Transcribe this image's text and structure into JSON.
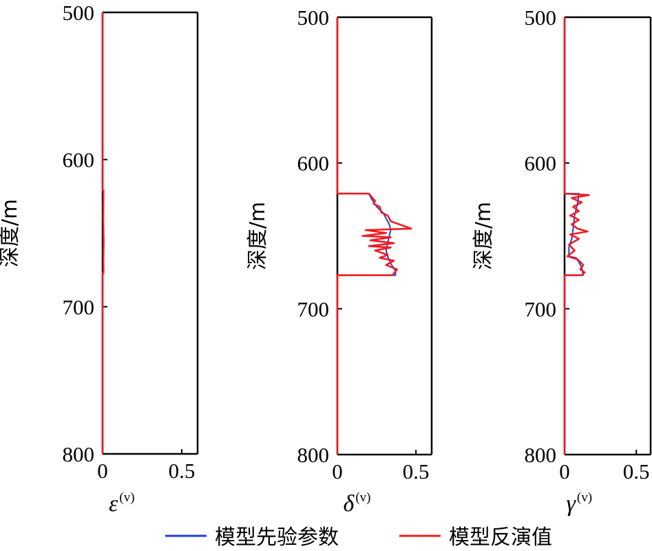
{
  "legend": [
    {
      "label": "模型先验参数",
      "color": "#1f3fd6"
    },
    {
      "label": "模型反演值",
      "color": "#ee1c24"
    }
  ],
  "chart_data": [
    {
      "type": "line",
      "orientation": "depth-vertical",
      "ylabel": "深度/m",
      "ylim": [
        500,
        800
      ],
      "y_inverted": true,
      "yticks": [
        "500",
        "600",
        "700",
        "800"
      ],
      "xlabel": "ε",
      "xlabel_sup": "(v)",
      "xlim": [
        0,
        0.6
      ],
      "xticks": [
        "0",
        "0.5"
      ],
      "series": [
        {
          "name": "模型先验参数",
          "color": "#1f3fd6",
          "points": [
            [
              0,
              500
            ],
            [
              0,
              621
            ],
            [
              0.005,
              622
            ],
            [
              0.005,
              676
            ],
            [
              0,
              677
            ],
            [
              0,
              800
            ]
          ]
        },
        {
          "name": "模型反演值",
          "color": "#ee1c24",
          "points": [
            [
              0,
              500
            ],
            [
              0,
              621
            ],
            [
              0.006,
              621
            ],
            [
              0.004,
              640
            ],
            [
              0.007,
              655
            ],
            [
              0.005,
              668
            ],
            [
              0.006,
              677
            ],
            [
              0,
              677
            ],
            [
              0,
              800
            ]
          ]
        }
      ]
    },
    {
      "type": "line",
      "orientation": "depth-vertical",
      "ylabel": "深度/m",
      "ylim": [
        500,
        800
      ],
      "y_inverted": true,
      "yticks": [
        "500",
        "600",
        "700",
        "800"
      ],
      "xlabel": "δ",
      "xlabel_sup": "(v)",
      "xlim": [
        0,
        0.6
      ],
      "xticks": [
        "0",
        "0.5"
      ],
      "series": [
        {
          "name": "模型先验参数",
          "color": "#1f3fd6",
          "points": [
            [
              0,
              500
            ],
            [
              0,
              621
            ],
            [
              0.2,
              621
            ],
            [
              0.22,
              625
            ],
            [
              0.25,
              630
            ],
            [
              0.29,
              634
            ],
            [
              0.31,
              638
            ],
            [
              0.33,
              642
            ],
            [
              0.34,
              646
            ],
            [
              0.33,
              650
            ],
            [
              0.32,
              655
            ],
            [
              0.31,
              660
            ],
            [
              0.32,
              664
            ],
            [
              0.34,
              669
            ],
            [
              0.37,
              674
            ],
            [
              0.37,
              677
            ],
            [
              0,
              677
            ],
            [
              0,
              800
            ]
          ]
        },
        {
          "name": "模型反演值",
          "color": "#ee1c24",
          "points": [
            [
              0,
              500
            ],
            [
              0,
              621
            ],
            [
              0.2,
              621
            ],
            [
              0.24,
              626
            ],
            [
              0.23,
              628
            ],
            [
              0.27,
              630
            ],
            [
              0.28,
              634
            ],
            [
              0.32,
              636
            ],
            [
              0.34,
              640
            ],
            [
              0.47,
              645
            ],
            [
              0.18,
              646
            ],
            [
              0.31,
              648
            ],
            [
              0.16,
              650
            ],
            [
              0.34,
              651
            ],
            [
              0.21,
              653
            ],
            [
              0.36,
              655
            ],
            [
              0.2,
              657
            ],
            [
              0.34,
              658
            ],
            [
              0.24,
              660
            ],
            [
              0.32,
              663
            ],
            [
              0.27,
              665
            ],
            [
              0.36,
              667
            ],
            [
              0.31,
              670
            ],
            [
              0.38,
              673
            ],
            [
              0.35,
              677
            ],
            [
              0,
              677
            ],
            [
              0,
              800
            ]
          ]
        }
      ]
    },
    {
      "type": "line",
      "orientation": "depth-vertical",
      "ylabel": "深度/m",
      "ylim": [
        500,
        800
      ],
      "y_inverted": true,
      "yticks": [
        "500",
        "600",
        "700",
        "800"
      ],
      "xlabel": "γ",
      "xlabel_sup": "(v)",
      "xlim": [
        0,
        0.6
      ],
      "xticks": [
        "0",
        "0.5"
      ],
      "series": [
        {
          "name": "模型先验参数",
          "color": "#1f3fd6",
          "points": [
            [
              0,
              500
            ],
            [
              0,
              621
            ],
            [
              0.1,
              621
            ],
            [
              0.09,
              628
            ],
            [
              0.07,
              636
            ],
            [
              0.06,
              645
            ],
            [
              0.05,
              652
            ],
            [
              0.03,
              658
            ],
            [
              0.03,
              664
            ],
            [
              0.08,
              665
            ],
            [
              0.1,
              668
            ],
            [
              0.12,
              672
            ],
            [
              0.13,
              677
            ],
            [
              0,
              677
            ],
            [
              0,
              800
            ]
          ]
        },
        {
          "name": "模型反演值",
          "color": "#ee1c24",
          "points": [
            [
              0,
              500
            ],
            [
              0,
              621
            ],
            [
              0.17,
              622
            ],
            [
              0.05,
              624
            ],
            [
              0.12,
              627
            ],
            [
              0.06,
              630
            ],
            [
              0.1,
              633
            ],
            [
              0.04,
              636
            ],
            [
              0.1,
              639
            ],
            [
              0.05,
              642
            ],
            [
              0.09,
              645
            ],
            [
              0.16,
              647
            ],
            [
              0.04,
              649
            ],
            [
              0.1,
              652
            ],
            [
              0.03,
              656
            ],
            [
              0.07,
              660
            ],
            [
              0.02,
              664
            ],
            [
              0.09,
              666
            ],
            [
              0.13,
              670
            ],
            [
              0.11,
              673
            ],
            [
              0.14,
              675
            ],
            [
              0.12,
              677
            ],
            [
              0,
              677
            ],
            [
              0,
              800
            ]
          ]
        }
      ]
    }
  ]
}
